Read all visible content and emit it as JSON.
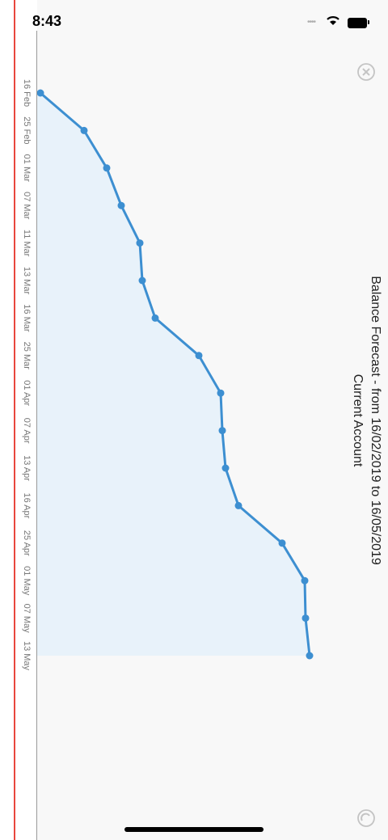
{
  "status_bar": {
    "time": "8:43"
  },
  "chart_data": {
    "type": "area",
    "orientation": "rotated-90",
    "title": "Balance Forecast - from 16/02/2019 to 16/05/2019",
    "subtitle": "Current Account",
    "x_ticks": [
      "16 Feb",
      "25 Feb",
      "01 Mar",
      "07 Mar",
      "11 Mar",
      "13 Mar",
      "16 Mar",
      "25 Mar",
      "01 Apr",
      "07 Apr",
      "13 Apr",
      "16 Apr",
      "25 Apr",
      "01 May",
      "07 May",
      "13 May"
    ],
    "values": [
      50,
      104,
      132,
      150,
      173,
      176,
      192,
      246,
      273,
      275,
      279,
      295,
      349,
      377,
      378,
      383
    ],
    "y_range": [
      22,
      420
    ],
    "line_color": "#3d8fd1",
    "fill_color": "#e8f2fa"
  },
  "icons": {
    "close": "close-circle-icon",
    "refresh": "refresh-circle-icon"
  }
}
